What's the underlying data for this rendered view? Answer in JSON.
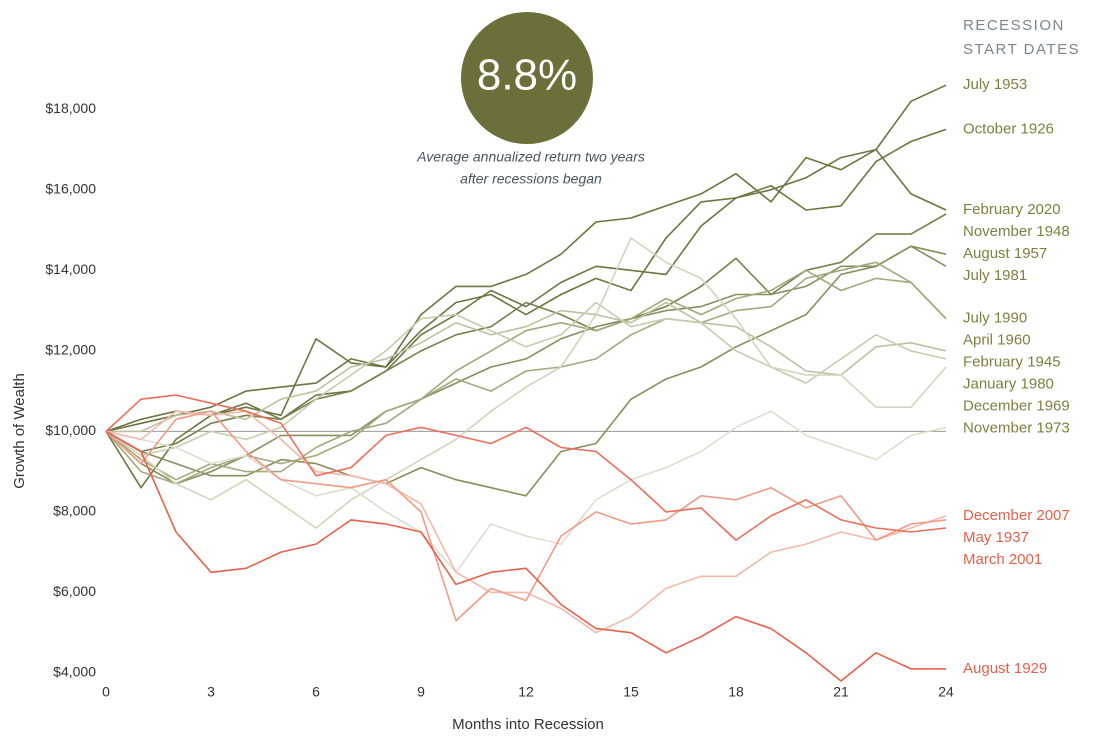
{
  "chart_data": {
    "type": "line",
    "highlight": "8.8%",
    "annotation_lines": [
      "Average annualized return two years",
      "after recessions began"
    ],
    "legend_title_lines": [
      "RECESSION",
      "START DATES"
    ],
    "x_label": "Months into Recession",
    "y_label": "Growth of Wealth",
    "x": [
      0,
      1,
      2,
      3,
      4,
      5,
      6,
      7,
      8,
      9,
      10,
      11,
      12,
      13,
      14,
      15,
      16,
      17,
      18,
      19,
      20,
      21,
      22,
      23,
      24
    ],
    "xlim": [
      0,
      24
    ],
    "xticks": [
      0,
      3,
      6,
      9,
      12,
      15,
      18,
      21,
      24
    ],
    "ylim": [
      3700,
      19200
    ],
    "yticks": [
      {
        "value": 4000,
        "label": "$4,000"
      },
      {
        "value": 6000,
        "label": "$6,000"
      },
      {
        "value": 8000,
        "label": "$8,000"
      },
      {
        "value": 10000,
        "label": "$10,000"
      },
      {
        "value": 12000,
        "label": "$12,000"
      },
      {
        "value": 14000,
        "label": "$14,000"
      },
      {
        "value": 16000,
        "label": "$16,000"
      },
      {
        "value": 18000,
        "label": "$18,000"
      }
    ],
    "reference_line": 10000,
    "series": [
      {
        "name": "July 1953",
        "color": "#6f7441",
        "label_color": "#7d8040",
        "values": [
          10000,
          10200,
          10400,
          10600,
          11000,
          11100,
          11200,
          11800,
          11600,
          12900,
          13600,
          13600,
          13900,
          14400,
          15200,
          15300,
          15600,
          15900,
          16400,
          15700,
          16800,
          16500,
          17000,
          18200,
          18600
        ]
      },
      {
        "name": "October 1926",
        "color": "#6f7441",
        "label_color": "#7d8040",
        "values": [
          10000,
          10300,
          10500,
          10400,
          10700,
          10300,
          10900,
          11000,
          11500,
          12400,
          12900,
          13500,
          13100,
          13700,
          14100,
          14000,
          13900,
          15100,
          15800,
          16100,
          15500,
          15600,
          16700,
          17200,
          17500
        ]
      },
      {
        "name": "February 2020",
        "color": "#6f7441",
        "label_color": "#7d8040",
        "values": [
          10000,
          8600,
          9800,
          10400,
          10600,
          10400,
          12300,
          11700,
          11600,
          12500,
          13200,
          13400,
          12900,
          13400,
          13800,
          13500,
          14800,
          15700,
          15800,
          16000,
          16300,
          16800,
          17000,
          15900,
          15500
        ]
      },
      {
        "name": "November 1948",
        "color": "#7b7f4c",
        "label_color": "#7d8040",
        "values": [
          10000,
          9500,
          9700,
          10200,
          10400,
          10300,
          10800,
          11000,
          11500,
          12000,
          12400,
          12600,
          13200,
          12900,
          12500,
          12800,
          13100,
          13600,
          14300,
          13400,
          14000,
          14200,
          14900,
          14900,
          15400
        ]
      },
      {
        "name": "August 1957",
        "color": "#8a8d5c",
        "label_color": "#7d8040",
        "values": [
          10000,
          9200,
          8700,
          9000,
          9400,
          9900,
          9900,
          9900,
          10500,
          10800,
          11200,
          11600,
          11800,
          12300,
          12600,
          12800,
          13000,
          13100,
          13400,
          13400,
          13600,
          14100,
          14100,
          14600,
          14400
        ]
      },
      {
        "name": "July 1981",
        "color": "#8a8d5c",
        "label_color": "#7d8040",
        "values": [
          10000,
          9500,
          9200,
          8900,
          8900,
          9300,
          9200,
          8900,
          8700,
          9100,
          8800,
          8600,
          8400,
          9500,
          9700,
          10800,
          11300,
          11600,
          12100,
          12500,
          12900,
          13900,
          14100,
          14600,
          14100
        ]
      },
      {
        "name": "July 1990",
        "color": "#a5a77e",
        "label_color": "#7d8040",
        "values": [
          10000,
          9000,
          8700,
          9100,
          9400,
          9200,
          9400,
          9800,
          10500,
          10800,
          11300,
          11000,
          11500,
          11600,
          11800,
          12400,
          12800,
          12700,
          13000,
          13100,
          13800,
          14000,
          14200,
          13700,
          12800
        ]
      },
      {
        "name": "April 1960",
        "color": "#a5a77e",
        "label_color": "#7d8040",
        "values": [
          10000,
          9300,
          8800,
          9200,
          9000,
          9000,
          9600,
          10000,
          10200,
          10800,
          11500,
          12000,
          12500,
          12700,
          12500,
          12800,
          13300,
          12900,
          13300,
          13500,
          14000,
          13500,
          13800,
          13700,
          12800
        ]
      },
      {
        "name": "February 1945",
        "color": "#bfc0a0",
        "label_color": "#7d8040",
        "values": [
          10000,
          10000,
          10400,
          10500,
          10300,
          10800,
          11000,
          11600,
          11800,
          12200,
          12700,
          12400,
          12600,
          13000,
          12900,
          12700,
          13200,
          12700,
          12600,
          12100,
          11500,
          11400,
          12100,
          12200,
          12000
        ]
      },
      {
        "name": "January 1980",
        "color": "#c9caae",
        "label_color": "#7d8040",
        "values": [
          10000,
          9400,
          9600,
          10000,
          9800,
          10100,
          10800,
          11400,
          12000,
          12800,
          12900,
          12500,
          12100,
          12400,
          13200,
          12600,
          12800,
          12700,
          12000,
          11600,
          11200,
          11800,
          12400,
          12000,
          11800
        ]
      },
      {
        "name": "December 1969",
        "color": "#d3d4bc",
        "label_color": "#7d8040",
        "values": [
          10000,
          9400,
          8700,
          8300,
          8800,
          8200,
          7600,
          8300,
          8800,
          9300,
          9800,
          10500,
          11100,
          11600,
          12900,
          14800,
          14200,
          13800,
          12800,
          11600,
          11400,
          11400,
          10600,
          10600,
          11600
        ]
      },
      {
        "name": "November 1973",
        "color": "#deded0",
        "label_color": "#7d8040",
        "values": [
          10000,
          9800,
          9600,
          9200,
          9400,
          8800,
          8400,
          8600,
          8000,
          7500,
          6500,
          7700,
          7400,
          7200,
          8300,
          8800,
          9100,
          9500,
          10100,
          10500,
          9900,
          9600,
          9300,
          9900,
          10100
        ]
      },
      {
        "name": "December 2007",
        "color": "#f5b9aa",
        "label_color": "#e8604a",
        "values": [
          10000,
          9800,
          10500,
          10400,
          10500,
          9800,
          9000,
          8900,
          8700,
          8200,
          6500,
          6000,
          6000,
          5600,
          5000,
          5400,
          6100,
          6400,
          6400,
          7000,
          7200,
          7500,
          7300,
          7600,
          7900
        ]
      },
      {
        "name": "May 1937",
        "color": "#f29a86",
        "label_color": "#e8604a",
        "values": [
          10000,
          9200,
          10300,
          10500,
          9500,
          8800,
          8700,
          8600,
          8800,
          8000,
          5300,
          6100,
          5800,
          7400,
          8000,
          7700,
          7800,
          8400,
          8300,
          8600,
          8100,
          8400,
          7300,
          7700,
          7800
        ]
      },
      {
        "name": "March 2001",
        "color": "#ec6f5a",
        "label_color": "#e8604a",
        "values": [
          10000,
          10800,
          10900,
          10700,
          10500,
          10200,
          8900,
          9100,
          9900,
          10100,
          9900,
          9700,
          10100,
          9600,
          9500,
          8800,
          8000,
          8100,
          7300,
          7900,
          8300,
          7800,
          7600,
          7500,
          7600
        ]
      },
      {
        "name": "August 1929",
        "color": "#e8604a",
        "label_color": "#e8604a",
        "values": [
          10000,
          9500,
          7500,
          6500,
          6600,
          7000,
          7200,
          7800,
          7700,
          7500,
          6200,
          6500,
          6600,
          5700,
          5100,
          5000,
          4500,
          4900,
          5400,
          5100,
          4500,
          3800,
          4500,
          4100,
          4100
        ]
      }
    ]
  }
}
